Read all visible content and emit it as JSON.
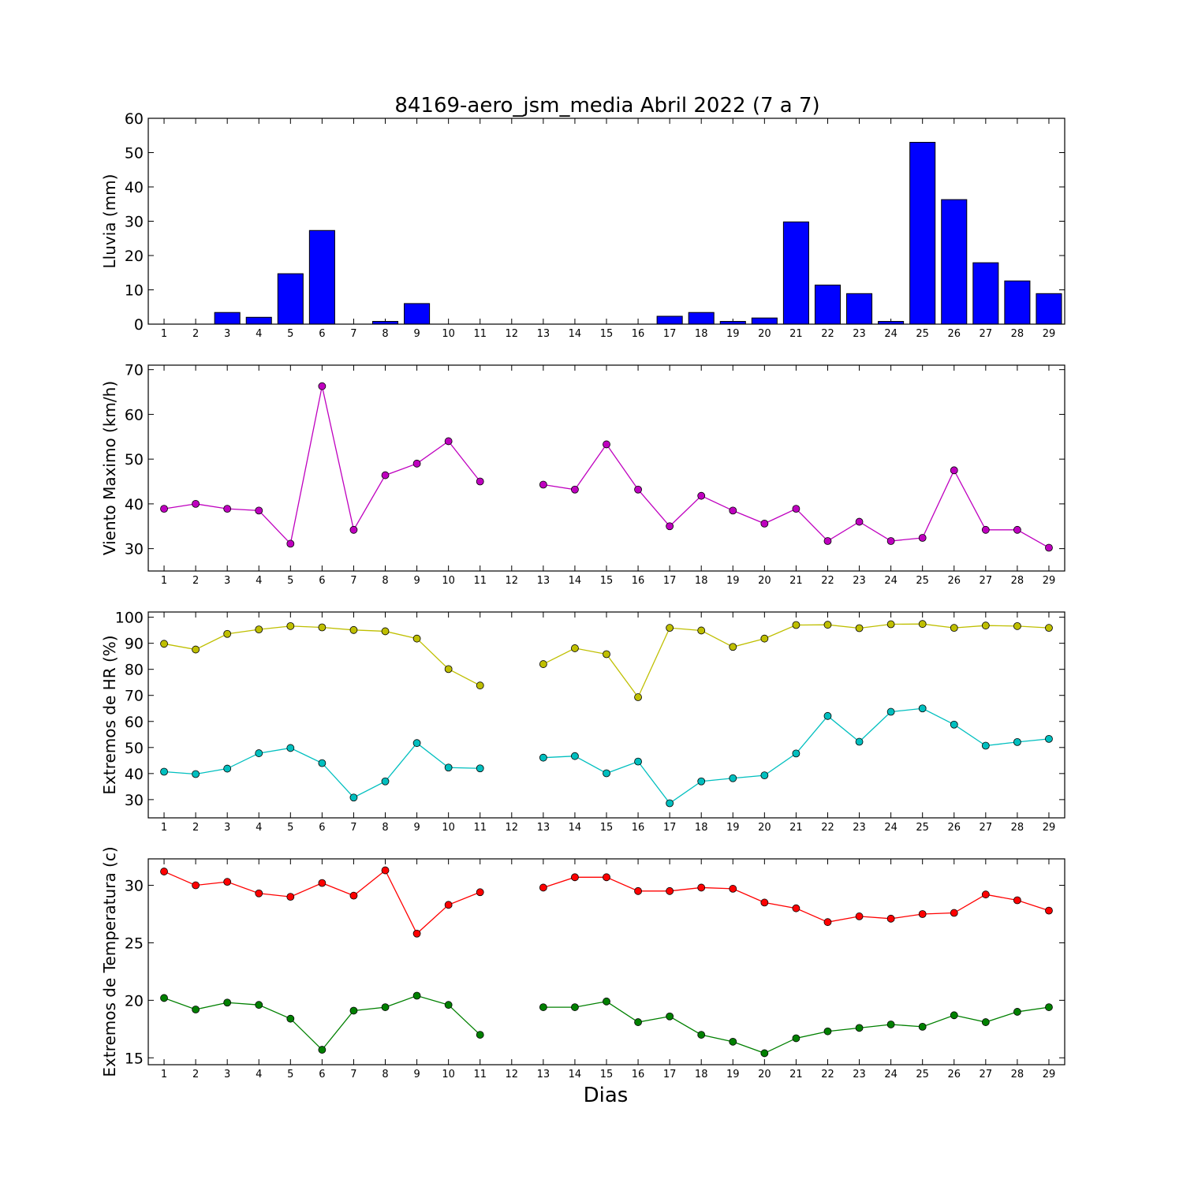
{
  "figure": {
    "title": "84169-aero_jsm_media Abril 2022  (7 a 7)",
    "xlabel": "Dias"
  },
  "chart_data": [
    {
      "type": "bar",
      "ylabel": "Lluvia (mm)",
      "ylim": [
        0,
        60
      ],
      "yticks": [
        0,
        10,
        20,
        30,
        40,
        50,
        60
      ],
      "grid": false,
      "categories": [
        1,
        2,
        3,
        4,
        5,
        6,
        7,
        8,
        9,
        10,
        11,
        12,
        13,
        14,
        15,
        16,
        17,
        18,
        19,
        20,
        21,
        22,
        23,
        24,
        25,
        26,
        27,
        28,
        29
      ],
      "series": [
        {
          "color": "#0000ff",
          "values": [
            0,
            0,
            3.4,
            2.0,
            14.7,
            27.3,
            0,
            0.8,
            6.0,
            0,
            0,
            0,
            0,
            0,
            0,
            0,
            2.3,
            3.4,
            0.8,
            1.8,
            29.8,
            11.4,
            8.9,
            0.8,
            53.0,
            36.3,
            17.9,
            12.6,
            8.9
          ]
        }
      ]
    },
    {
      "type": "line",
      "ylabel": "Viento Maximo (km/h)",
      "ylim": [
        25,
        71
      ],
      "yticks": [
        30,
        40,
        50,
        60,
        70
      ],
      "grid": false,
      "x": [
        1,
        2,
        3,
        4,
        5,
        6,
        7,
        8,
        9,
        10,
        11,
        12,
        13,
        14,
        15,
        16,
        17,
        18,
        19,
        20,
        21,
        22,
        23,
        24,
        25,
        26,
        27,
        28,
        29
      ],
      "series": [
        {
          "color": "#bf00bf",
          "values": [
            38.9,
            40.0,
            38.9,
            38.5,
            31.1,
            66.3,
            34.2,
            46.4,
            49.0,
            54.0,
            45.0,
            null,
            44.3,
            43.2,
            53.3,
            43.2,
            35.0,
            41.8,
            38.5,
            35.6,
            38.9,
            31.7,
            36.0,
            31.7,
            32.4,
            47.5,
            34.2,
            34.2,
            30.2
          ]
        }
      ]
    },
    {
      "type": "line",
      "ylabel": "Extremos de HR (%)",
      "ylim": [
        23,
        102
      ],
      "yticks": [
        30,
        40,
        50,
        60,
        70,
        80,
        90,
        100
      ],
      "grid": false,
      "x": [
        1,
        2,
        3,
        4,
        5,
        6,
        7,
        8,
        9,
        10,
        11,
        12,
        13,
        14,
        15,
        16,
        17,
        18,
        19,
        20,
        21,
        22,
        23,
        24,
        25,
        26,
        27,
        28,
        29
      ],
      "series": [
        {
          "color": "#bfbf00",
          "values": [
            89.8,
            87.6,
            93.6,
            95.3,
            96.6,
            96.1,
            95.1,
            94.6,
            91.8,
            80.1,
            73.8,
            null,
            82.0,
            88.1,
            85.8,
            69.3,
            95.9,
            94.9,
            88.6,
            91.8,
            97.0,
            97.1,
            95.8,
            97.3,
            97.4,
            95.9,
            96.8,
            96.6,
            95.9
          ]
        },
        {
          "color": "#00bfbf",
          "values": [
            40.7,
            39.8,
            41.9,
            47.8,
            49.8,
            44.0,
            30.8,
            37.0,
            51.7,
            42.3,
            42.0,
            null,
            46.1,
            46.7,
            40.1,
            44.6,
            28.6,
            37.0,
            38.2,
            39.3,
            47.7,
            62.1,
            52.2,
            63.7,
            65.0,
            58.8,
            50.7,
            52.1,
            53.3
          ]
        }
      ]
    },
    {
      "type": "line",
      "ylabel": "Extremos de Temperatura (c)",
      "ylim": [
        14.4,
        32.3
      ],
      "yticks": [
        15,
        20,
        25,
        30
      ],
      "grid": false,
      "x": [
        1,
        2,
        3,
        4,
        5,
        6,
        7,
        8,
        9,
        10,
        11,
        12,
        13,
        14,
        15,
        16,
        17,
        18,
        19,
        20,
        21,
        22,
        23,
        24,
        25,
        26,
        27,
        28,
        29
      ],
      "series": [
        {
          "color": "#ff0000",
          "values": [
            31.2,
            30.0,
            30.3,
            29.3,
            29.0,
            30.2,
            29.1,
            31.3,
            25.8,
            28.3,
            29.4,
            null,
            29.8,
            30.7,
            30.7,
            29.5,
            29.5,
            29.8,
            29.7,
            28.5,
            28.0,
            26.8,
            27.3,
            27.1,
            27.5,
            27.6,
            29.2,
            28.7,
            27.8
          ]
        },
        {
          "color": "#008000",
          "values": [
            20.2,
            19.2,
            19.8,
            19.6,
            18.4,
            15.7,
            19.1,
            19.4,
            20.4,
            19.6,
            17.0,
            null,
            19.4,
            19.4,
            19.9,
            18.1,
            18.6,
            17.0,
            16.4,
            15.4,
            16.7,
            17.3,
            17.6,
            17.9,
            17.7,
            18.7,
            18.1,
            19.0,
            19.4
          ]
        }
      ]
    }
  ]
}
